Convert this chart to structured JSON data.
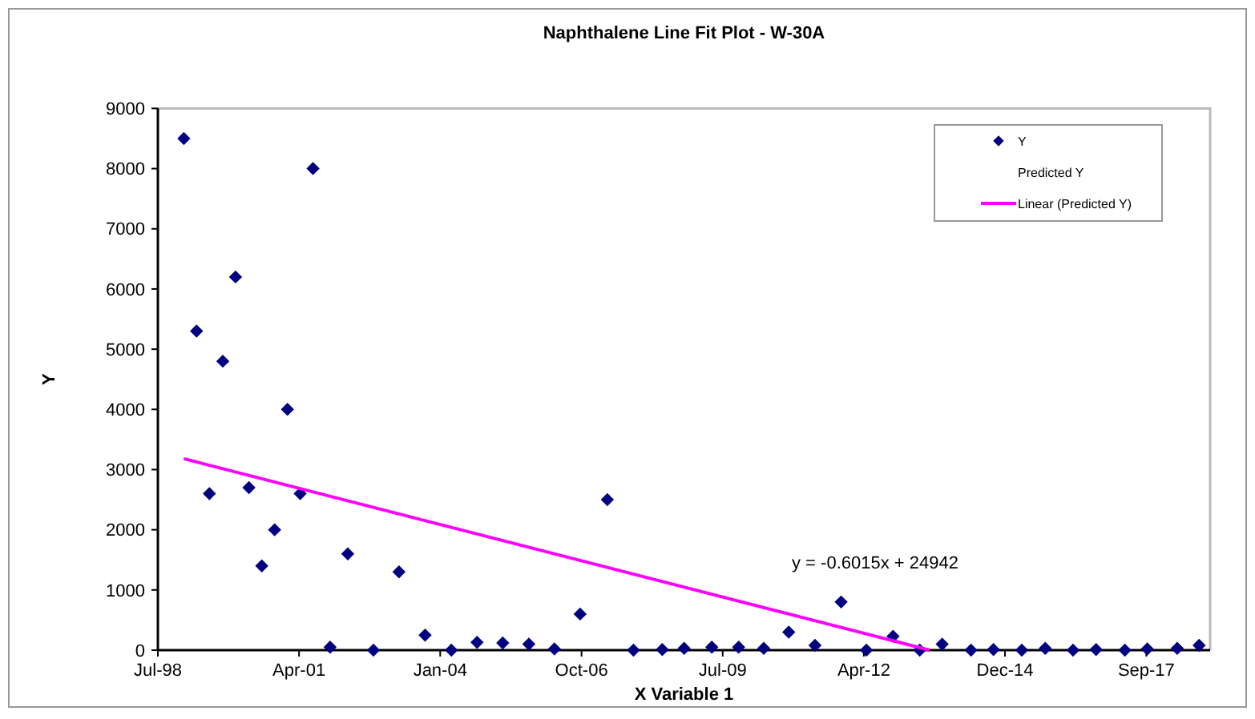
{
  "chart_data": {
    "type": "scatter",
    "title": "Naphthalene Line Fit Plot - W-30A",
    "xlabel": "X Variable 1",
    "ylabel": "Y",
    "xlim": [
      "1998-07-24",
      "2018-12-20"
    ],
    "xticks": [
      {
        "value": "1998-07-24",
        "label": "Jul-98"
      },
      {
        "value": "2001-04-19",
        "label": "Apr-01"
      },
      {
        "value": "2004-01-14",
        "label": "Jan-04"
      },
      {
        "value": "2006-10-11",
        "label": "Oct-06"
      },
      {
        "value": "2009-07-07",
        "label": "Jul-09"
      },
      {
        "value": "2012-04-02",
        "label": "Apr-12"
      },
      {
        "value": "2014-12-28",
        "label": "Dec-14"
      },
      {
        "value": "2017-09-24",
        "label": "Sep-17"
      }
    ],
    "ylim": [
      0,
      9000
    ],
    "yticks": [
      0,
      1000,
      2000,
      3000,
      4000,
      5000,
      6000,
      7000,
      8000,
      9000
    ],
    "grid": false,
    "legend": "top right",
    "marker": "diamond",
    "series": [
      {
        "name": "Y",
        "color": "#000080",
        "x": [
          "1999-01-24",
          "1999-04-24",
          "1999-07-24",
          "1999-10-27",
          "2000-01-25",
          "2000-04-29",
          "2000-07-29",
          "2000-10-28",
          "2001-01-27",
          "2001-04-27",
          "2001-07-27",
          "2001-11-25",
          "2002-03-30",
          "2002-09-28",
          "2003-03-28",
          "2003-09-29",
          "2004-04-02",
          "2004-10-01",
          "2005-04-01",
          "2005-10-03",
          "2006-04-02",
          "2006-10-01",
          "2007-04-12",
          "2007-10-14",
          "2008-05-05",
          "2008-10-07",
          "2009-04-21",
          "2009-10-28",
          "2010-04-24",
          "2010-10-18",
          "2011-04-22",
          "2011-10-24",
          "2012-04-20",
          "2012-10-26",
          "2013-05-03",
          "2013-10-09",
          "2014-05-01",
          "2014-10-07",
          "2015-04-26",
          "2015-10-09",
          "2016-04-23",
          "2016-10-03",
          "2017-04-25",
          "2017-10-01",
          "2018-05-01",
          "2018-10-03"
        ],
        "values": [
          8500,
          5300,
          2600,
          4800,
          6200,
          2700,
          1400,
          2000,
          4000,
          2600,
          8000,
          50,
          1600,
          0,
          1300,
          250,
          0,
          130,
          120,
          100,
          20,
          600,
          2500,
          0,
          10,
          30,
          50,
          50,
          30,
          300,
          80,
          800,
          0,
          230,
          0,
          100,
          0,
          10,
          0,
          30,
          0,
          10,
          0,
          20,
          30,
          80
        ]
      },
      {
        "name": "Predicted Y",
        "color": null
      },
      {
        "name": "Linear (Predicted Y)",
        "color": "#ff00ff",
        "type": "line",
        "marker": "none",
        "line_style": "solid",
        "x": [
          "1999-01-24",
          "2013-07-12"
        ],
        "values": [
          3180,
          0
        ]
      }
    ],
    "annotations": [
      "y = -0.6015x + 24942"
    ]
  }
}
